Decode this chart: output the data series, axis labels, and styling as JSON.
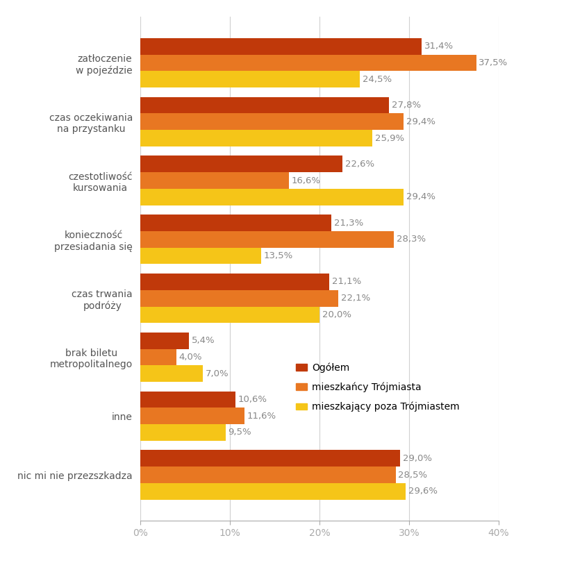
{
  "categories": [
    "nic mi nie przezszkadza",
    "inne",
    "brak biletu\nmetropolitalnego",
    "czas trwania\npodróży",
    "konieczność\nprzesiadania się",
    "czestotliwość\nkursowania",
    "czas oczekiwania\nna przystanku",
    "zatłoczenie\nw pojeździe"
  ],
  "series": {
    "Ogółem": [
      29.0,
      10.6,
      5.4,
      21.1,
      21.3,
      22.6,
      27.8,
      31.4
    ],
    "mieszkańcy Trójmiasta": [
      28.5,
      11.6,
      4.0,
      22.1,
      28.3,
      16.6,
      29.4,
      37.5
    ],
    "mieszkający poza Trójmiastem": [
      29.6,
      9.5,
      7.0,
      20.0,
      13.5,
      29.4,
      25.9,
      24.5
    ]
  },
  "colors": {
    "Ogółem": "#c0390a",
    "mieszkańcy Trójmiasta": "#e87722",
    "mieszkający poza Trójmiastem": "#f5c518"
  },
  "xlim": [
    0,
    40
  ],
  "xticks": [
    0,
    10,
    20,
    30,
    40
  ],
  "xticklabels": [
    "0%",
    "10%",
    "20%",
    "30%",
    "40%"
  ],
  "bar_height": 0.28,
  "figure_width": 8.25,
  "figure_height": 8.11,
  "background_color": "#ffffff",
  "grid_color": "#d0d0d0",
  "text_color": "#888888",
  "label_fontsize": 9.5,
  "ytick_fontsize": 10
}
